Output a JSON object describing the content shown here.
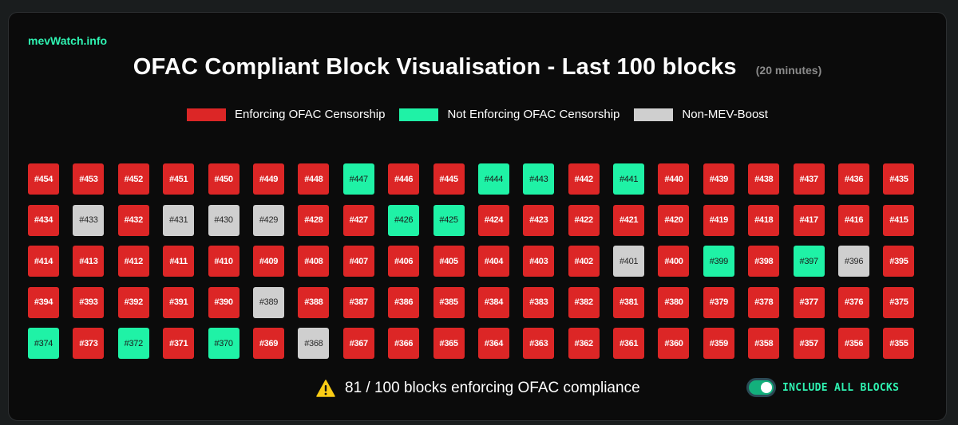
{
  "brand": "mevWatch.info",
  "title": "OFAC Compliant Block Visualisation - Last 100 blocks",
  "subtitle": "(20 minutes)",
  "colors": {
    "enforcing": "#dc2626",
    "not_enforcing": "#1ff2a6",
    "non_mev": "#cfcfcf",
    "accent": "#2ff3b2"
  },
  "legend": [
    {
      "label": "Enforcing OFAC Censorship",
      "color": "#dc2626"
    },
    {
      "label": "Not Enforcing OFAC Censorship",
      "color": "#1ff2a6"
    },
    {
      "label": "Non-MEV-Boost",
      "color": "#cfcfcf"
    }
  ],
  "blocks": {
    "start": 454,
    "end": 355,
    "not_enforcing": [
      447,
      444,
      443,
      441,
      426,
      425,
      399,
      397,
      374,
      372,
      370
    ],
    "non_mev": [
      433,
      431,
      430,
      429,
      401,
      396,
      389,
      368
    ]
  },
  "status": {
    "icon": "warning-icon",
    "text": "81 / 100 blocks enforcing OFAC compliance"
  },
  "toggle": {
    "label": "INCLUDE ALL BLOCKS",
    "on": true
  }
}
